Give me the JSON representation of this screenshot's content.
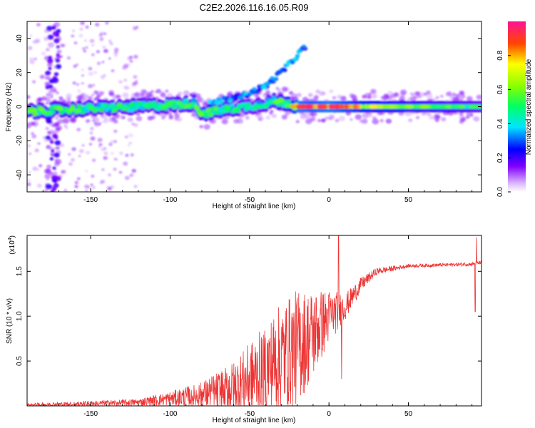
{
  "chart_data": [
    {
      "type": "heatmap",
      "title": "C2E2.2026.116.16.05.R09",
      "xlabel": "Height of straight line (km)",
      "ylabel": "Frequency (Hz)",
      "xlim": [
        -190,
        96
      ],
      "ylim": [
        -50,
        50
      ],
      "xticks": [
        -150,
        -100,
        -50,
        0,
        50
      ],
      "xtick_labels": [
        "-150",
        "-100",
        "-50",
        "0",
        "50"
      ],
      "yticks": [
        -40,
        -20,
        0,
        20,
        40
      ],
      "ytick_labels": [
        "-40",
        "-20",
        "0",
        "20",
        "40"
      ],
      "colorbar": {
        "label": "Normalized spectral amplitude",
        "range": [
          0,
          1
        ],
        "ticks": [
          0,
          0.2,
          0.4,
          0.6,
          0.8
        ],
        "tick_labels": [
          "0.0",
          "0.2",
          "0.4",
          "0.6",
          "0.8"
        ],
        "colormap": [
          "#ffffff",
          "#7a00ff",
          "#0000ff",
          "#00e5ff",
          "#00ff00",
          "#ffff00",
          "#ff0000",
          "#ff1493"
        ]
      },
      "ridge": [
        {
          "x": -190,
          "freq": -3,
          "amp": 0.55
        },
        {
          "x": -170,
          "freq": -2,
          "amp": 0.55
        },
        {
          "x": -150,
          "freq": -1,
          "amp": 0.5
        },
        {
          "x": -120,
          "freq": 0,
          "amp": 0.5
        },
        {
          "x": -100,
          "freq": 1,
          "amp": 0.5
        },
        {
          "x": -85,
          "freq": 2,
          "amp": 0.55
        },
        {
          "x": -80,
          "freq": -4,
          "amp": 0.55
        },
        {
          "x": -60,
          "freq": -1,
          "amp": 0.5
        },
        {
          "x": -45,
          "freq": 1,
          "amp": 0.45
        },
        {
          "x": -35,
          "freq": 3,
          "amp": 0.55
        },
        {
          "x": -25,
          "freq": 2,
          "amp": 0.6
        },
        {
          "x": -20,
          "freq": 0,
          "amp": 0.9
        },
        {
          "x": -10,
          "freq": 0,
          "amp": 0.85
        },
        {
          "x": 0,
          "freq": 0,
          "amp": 0.9
        },
        {
          "x": 20,
          "freq": 0,
          "amp": 0.75
        },
        {
          "x": 50,
          "freq": 0,
          "amp": 0.6
        },
        {
          "x": 96,
          "freq": 0,
          "amp": 0.5
        }
      ],
      "rising_branch": [
        {
          "x": -75,
          "freq": 2
        },
        {
          "x": -55,
          "freq": 6
        },
        {
          "x": -40,
          "freq": 12
        },
        {
          "x": -28,
          "freq": 22
        },
        {
          "x": -15,
          "freq": 35
        }
      ]
    },
    {
      "type": "line",
      "xlabel": "Height of straight line (km)",
      "ylabel": "SNR (10 * v/v)",
      "yscale_label": "(x10",
      "yscale_exponent": "4",
      "xlim": [
        -190,
        96
      ],
      "ylim": [
        0,
        1.9
      ],
      "xticks": [
        -150,
        -100,
        -50,
        0,
        50
      ],
      "xtick_labels": [
        "-150",
        "-100",
        "-50",
        "0",
        "50"
      ],
      "yticks": [
        0.5,
        1.0,
        1.5
      ],
      "ytick_labels": [
        "0.5",
        "1.0",
        "1.5"
      ],
      "color": "#ee3333",
      "series": [
        {
          "name": "SNR",
          "envelope": [
            {
              "x": -190,
              "base": 0.01,
              "noise": 0.02
            },
            {
              "x": -160,
              "base": 0.02,
              "noise": 0.03
            },
            {
              "x": -120,
              "base": 0.04,
              "noise": 0.04
            },
            {
              "x": -100,
              "base": 0.08,
              "noise": 0.08
            },
            {
              "x": -80,
              "base": 0.12,
              "noise": 0.15
            },
            {
              "x": -60,
              "base": 0.2,
              "noise": 0.3
            },
            {
              "x": -45,
              "base": 0.35,
              "noise": 0.45
            },
            {
              "x": -30,
              "base": 0.55,
              "noise": 0.6
            },
            {
              "x": -20,
              "base": 0.65,
              "noise": 0.65
            },
            {
              "x": -10,
              "base": 0.8,
              "noise": 0.5
            },
            {
              "x": 0,
              "base": 1.0,
              "noise": 0.3
            },
            {
              "x": 10,
              "base": 1.1,
              "noise": 0.15
            },
            {
              "x": 20,
              "base": 1.35,
              "noise": 0.08
            },
            {
              "x": 30,
              "base": 1.5,
              "noise": 0.04
            },
            {
              "x": 50,
              "base": 1.56,
              "noise": 0.02
            },
            {
              "x": 90,
              "base": 1.58,
              "noise": 0.02
            },
            {
              "x": 96,
              "base": 1.6,
              "noise": 0.02
            }
          ],
          "spikes": [
            {
              "x": 6,
              "value": 1.92
            },
            {
              "x": 8,
              "value": 0.3
            },
            {
              "x": 92,
              "value": 1.05
            },
            {
              "x": 93,
              "value": 1.88
            }
          ]
        }
      ]
    }
  ]
}
